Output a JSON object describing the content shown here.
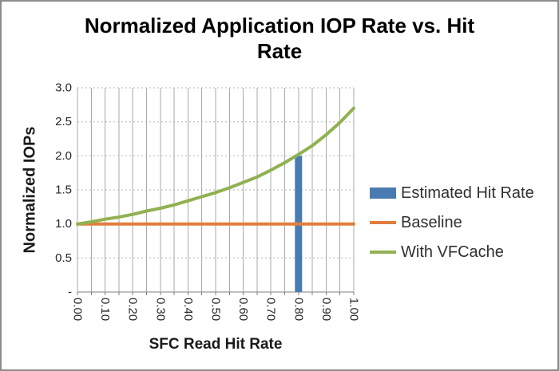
{
  "chart_data": {
    "type": "combo",
    "title": "Normalized Application IOP Rate vs. Hit Rate",
    "title_lines": [
      "Normalized Application IOP Rate vs. Hit",
      "Rate"
    ],
    "xlabel": "SFC Read Hit Rate",
    "ylabel": "Normalized IOPs",
    "xlim": [
      0,
      1
    ],
    "ylim": [
      0,
      3
    ],
    "x_major_step": 0.1,
    "x_minor_step": 0.05,
    "y_major_step": 0.5,
    "x_tick_labels": [
      "0.00",
      "0.10",
      "0.20",
      "0.30",
      "0.40",
      "0.50",
      "0.60",
      "0.70",
      "0.80",
      "0.90",
      "1.00"
    ],
    "y_ticks": [
      {
        "value": 3.0,
        "label": "3.0"
      },
      {
        "value": 2.5,
        "label": "2.5"
      },
      {
        "value": 2.0,
        "label": "2.0"
      },
      {
        "value": 1.5,
        "label": "1.5"
      },
      {
        "value": 1.0,
        "label": "1.0"
      },
      {
        "value": 0.5,
        "label": "0.5"
      },
      {
        "value": 0.0,
        "label": "-"
      }
    ],
    "grid": {
      "vertical": "solid",
      "horizontal": "dashed",
      "color": "#aaaaaa"
    },
    "axis_color": "#808080",
    "legend_position": "right",
    "series": [
      {
        "name": "Estimated Hit Rate",
        "type": "bar",
        "color": "#4A7BB0",
        "x": [
          0.8
        ],
        "values": [
          2.0
        ]
      },
      {
        "name": "Baseline",
        "type": "line",
        "color": "#E07E3C",
        "x": [
          0,
          1
        ],
        "values": [
          1.0,
          1.0
        ]
      },
      {
        "name": "With VFCache",
        "type": "line",
        "color": "#90B151",
        "x": [
          0,
          0.05,
          0.1,
          0.15,
          0.2,
          0.25,
          0.3,
          0.35,
          0.4,
          0.45,
          0.5,
          0.55,
          0.6,
          0.65,
          0.7,
          0.75,
          0.8,
          0.85,
          0.9,
          0.95,
          1.0
        ],
        "values": [
          1.0,
          1.03,
          1.07,
          1.1,
          1.14,
          1.19,
          1.23,
          1.28,
          1.34,
          1.4,
          1.46,
          1.53,
          1.61,
          1.69,
          1.79,
          1.9,
          2.02,
          2.15,
          2.31,
          2.49,
          2.7
        ]
      }
    ]
  }
}
